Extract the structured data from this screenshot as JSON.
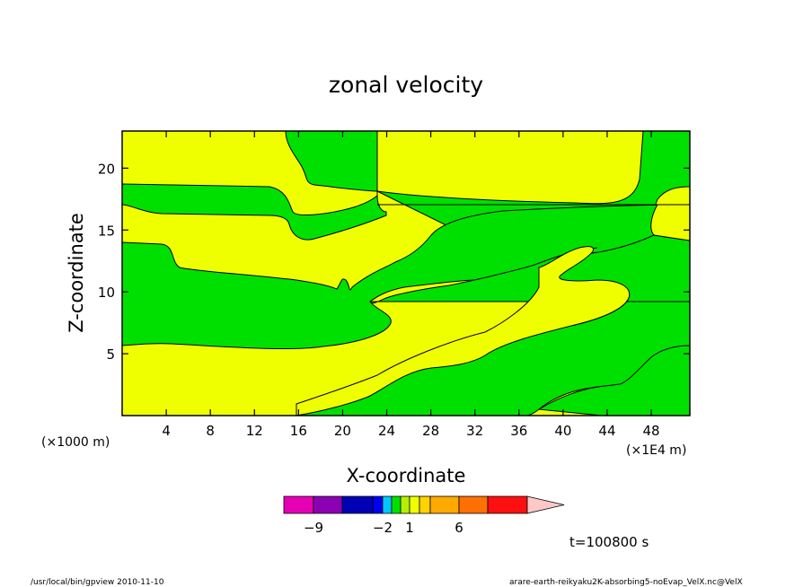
{
  "chart_data": {
    "type": "heatmap",
    "title": "zonal velocity",
    "xlabel": "X-coordinate",
    "ylabel": "Z-coordinate",
    "x_scale_note": "(×1E4 m)",
    "y_scale_note": "(×1000 m)",
    "xlim": [
      0,
      51.5
    ],
    "ylim": [
      0,
      23
    ],
    "x_ticks": [
      4,
      8,
      12,
      16,
      20,
      24,
      28,
      32,
      36,
      40,
      44,
      48
    ],
    "y_ticks": [
      5,
      10,
      15,
      20
    ],
    "fill_colors": {
      "negative_region": "#00e000",
      "positive_region": "#f0ff00"
    },
    "colorbar": {
      "colors": [
        "#e600b4",
        "#8c00b4",
        "#0000b4",
        "#0000f0",
        "#00c8ff",
        "#00e000",
        "#b4f000",
        "#f0ff00",
        "#ffd200",
        "#ffaa00",
        "#ff7000",
        "#ff1010",
        "#ff7878",
        "#ffc8c8"
      ],
      "labels": [
        {
          "text": "−9",
          "value": -9
        },
        {
          "text": "−2",
          "value": -2
        },
        {
          "text": "1",
          "value": 1
        },
        {
          "text": "6",
          "value": 6
        }
      ]
    },
    "time_label": "t=100800 s"
  },
  "footer": {
    "left": "/usr/local/bin/gpview  2010-11-10",
    "right": "arare-earth-reikyaku2K-absorbing5-noEvap_VelX.nc@VelX"
  }
}
